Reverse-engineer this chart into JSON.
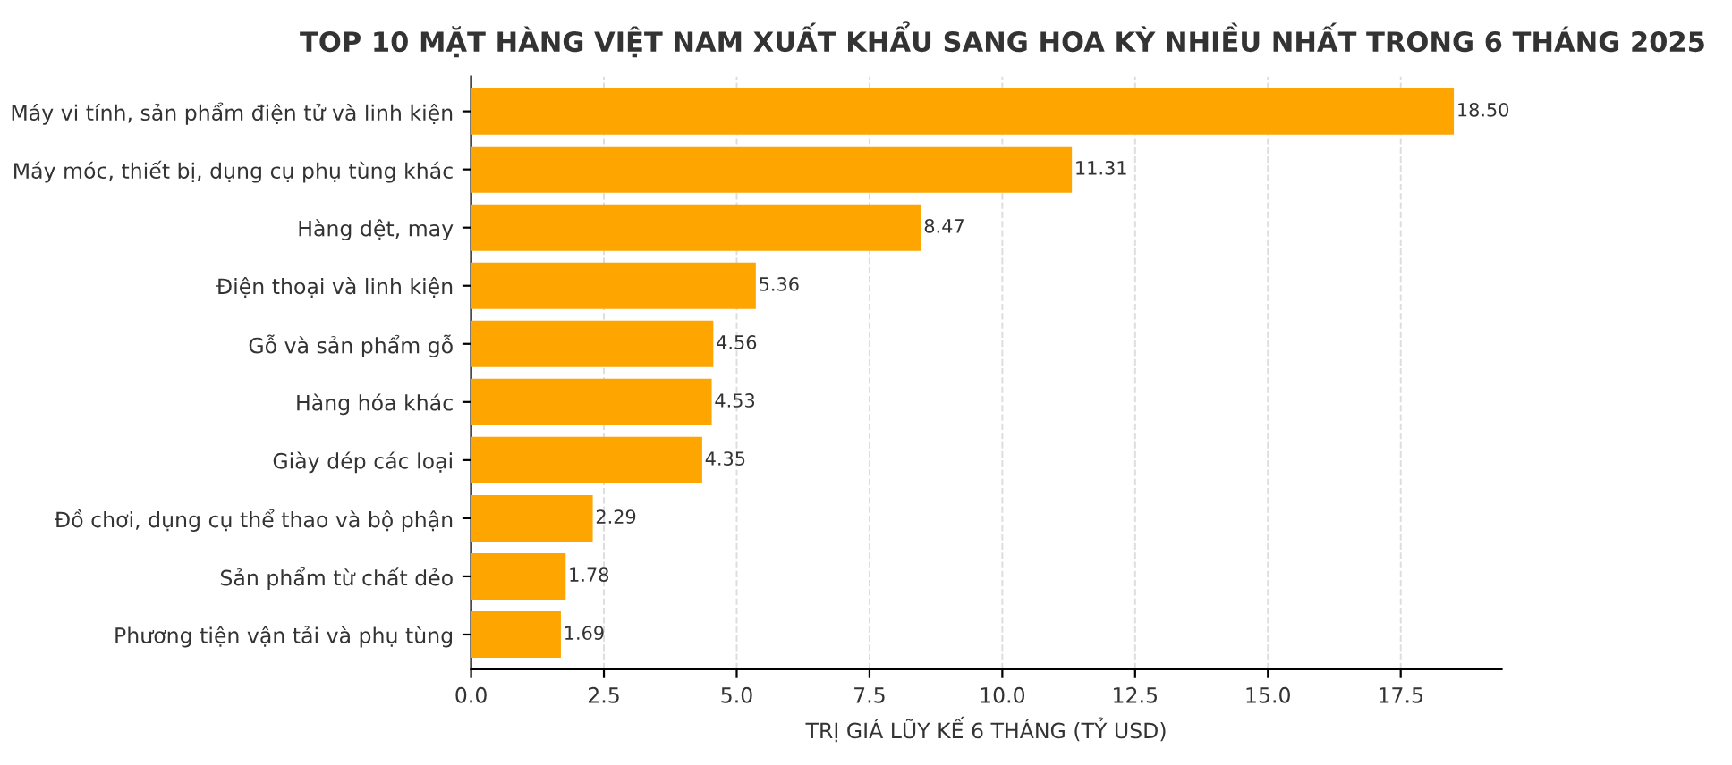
{
  "chart_data": {
    "type": "bar",
    "orientation": "horizontal",
    "title": "TOP 10 MẶT HÀNG VIỆT NAM XUẤT KHẨU SANG HOA KỲ NHIỀU NHẤT TRONG 6 THÁNG 2025",
    "xlabel": "TRỊ GIÁ LŨY KẾ 6 THÁNG (TỶ USD)",
    "categories": [
      "Máy vi tính, sản phẩm điện tử và linh kiện",
      "Máy móc, thiết bị, dụng cụ phụ tùng khác",
      "Hàng dệt, may",
      "Điện thoại và linh kiện",
      "Gỗ và sản phẩm gỗ",
      "Hàng hóa khác",
      "Giày dép các loại",
      "Đồ chơi, dụng cụ thể thao và bộ phận",
      "Sản phẩm từ chất dẻo",
      "Phương tiện vận tải và phụ tùng"
    ],
    "values": [
      18.5,
      11.31,
      8.47,
      5.36,
      4.56,
      4.53,
      4.35,
      2.29,
      1.78,
      1.69
    ],
    "value_labels": [
      "18.50",
      "11.31",
      "8.47",
      "5.36",
      "4.56",
      "4.53",
      "4.35",
      "2.29",
      "1.78",
      "1.69"
    ],
    "color": "#ffa500",
    "xlim": [
      0,
      19.4
    ],
    "xticks": [
      {
        "value": 0,
        "label": "0.0"
      },
      {
        "value": 2.5,
        "label": "2.5"
      },
      {
        "value": 5,
        "label": "5.0"
      },
      {
        "value": 7.5,
        "label": "7.5"
      },
      {
        "value": 10,
        "label": "10.0"
      },
      {
        "value": 12.5,
        "label": "12.5"
      },
      {
        "value": 15,
        "label": "15.0"
      },
      {
        "value": 17.5,
        "label": "17.5"
      }
    ],
    "grid": "x"
  }
}
